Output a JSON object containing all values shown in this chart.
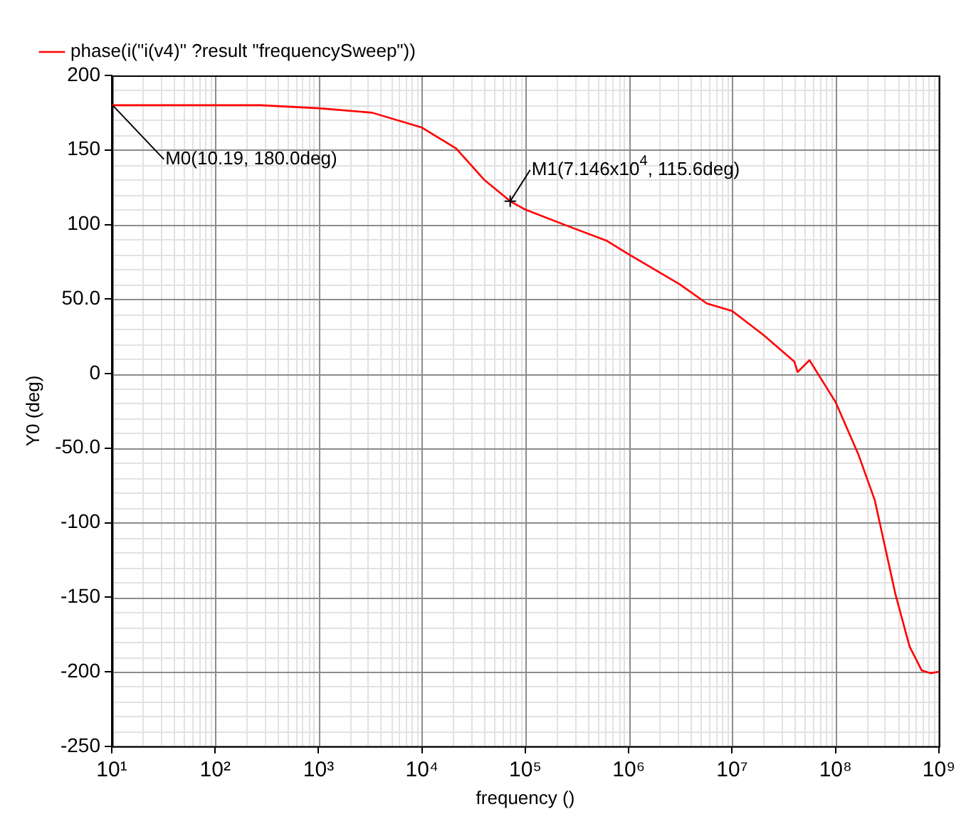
{
  "chart_data": {
    "type": "line",
    "xlabel": "frequency ()",
    "ylabel": "Y0 (deg)",
    "log": "x",
    "grid": true,
    "legend": "top left",
    "marker": "none",
    "line_style": "solid",
    "xlim": [
      10,
      1000000000
    ],
    "ylim": [
      -250,
      200
    ],
    "xticks": [
      {
        "value": 10,
        "label": "10¹"
      },
      {
        "value": 100,
        "label": "10²"
      },
      {
        "value": 1000,
        "label": "10³"
      },
      {
        "value": 10000,
        "label": "10⁴"
      },
      {
        "value": 100000,
        "label": "10⁵"
      },
      {
        "value": 1000000,
        "label": "10⁶"
      },
      {
        "value": 10000000,
        "label": "10⁷"
      },
      {
        "value": 100000000,
        "label": "10⁸"
      },
      {
        "value": 1000000000,
        "label": "10⁹"
      }
    ],
    "yticks": [
      200,
      150,
      100,
      {
        "value": 50,
        "label": "50.0"
      },
      0,
      {
        "value": -50,
        "label": "-50.0"
      },
      -100,
      -150,
      -200,
      -250
    ],
    "x": [
      10,
      275,
      1000,
      3300,
      10000,
      21400,
      40000,
      71460,
      100000,
      257000,
      617000,
      1000000,
      3100000,
      5700000,
      10000000,
      20000000,
      40000000,
      43000000,
      56000000,
      100000000,
      166000000,
      240000000,
      380000000,
      520000000,
      680000000,
      830000000,
      1000000000
    ],
    "series": [
      {
        "name": "phase(i(\"i(v4)\" ?result \"frequencySweep\"))",
        "color": "#ff0000",
        "values": [
          180,
          180,
          178,
          175,
          165,
          151,
          130,
          115.6,
          110,
          99,
          89,
          80,
          60,
          47,
          42,
          26,
          8,
          1,
          9,
          -19,
          -54,
          -85,
          -148,
          -183,
          -199,
          -201,
          -200
        ]
      }
    ],
    "annotations": [
      {
        "text": "M0(10.19, 180.0deg)",
        "x": 10.19,
        "y": 180
      },
      {
        "text": "M1(7.146x10$^{4}$, 115.6deg)",
        "x": 71460,
        "y": 115.6
      }
    ]
  }
}
